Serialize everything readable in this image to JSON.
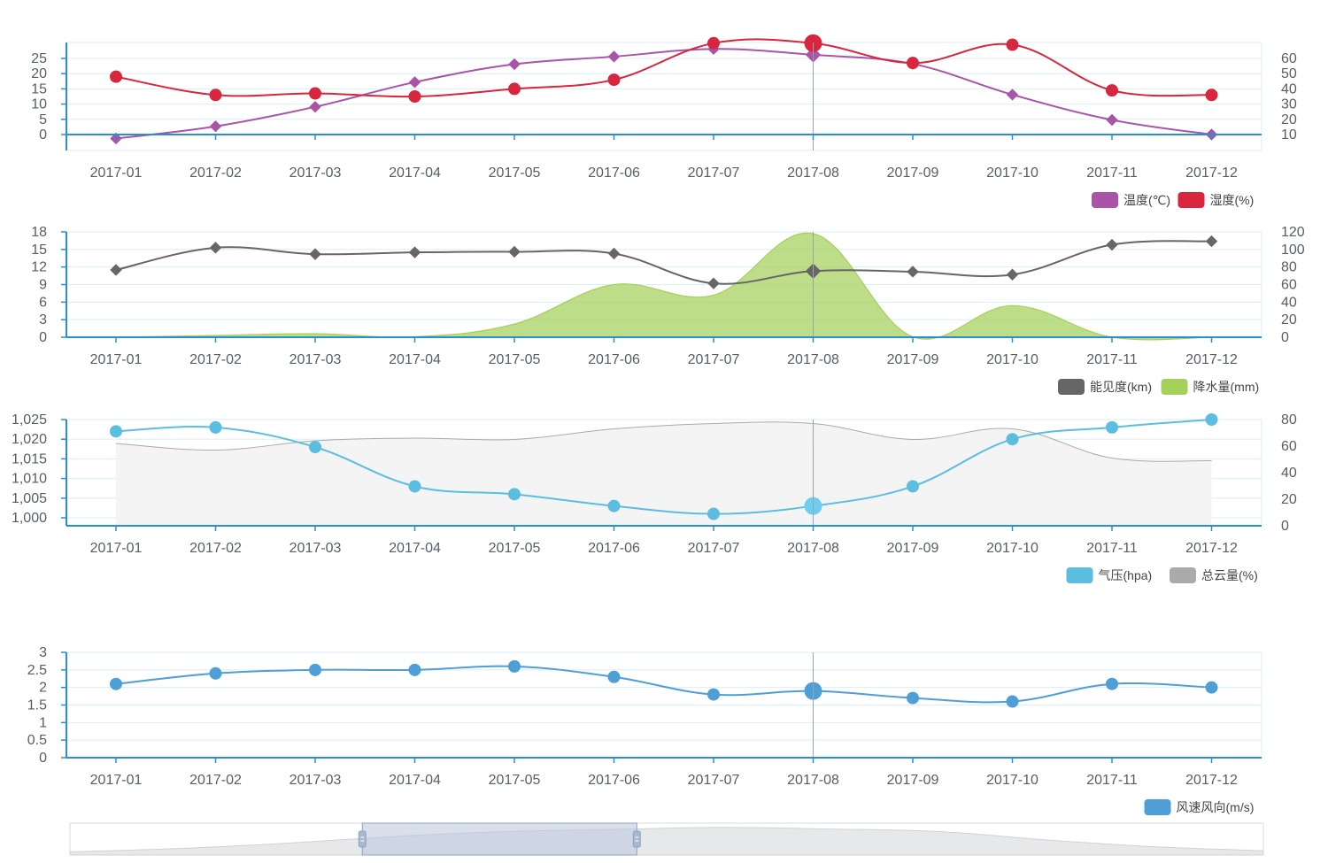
{
  "chart_data": [
    {
      "type": "line",
      "categories": [
        "2017-01",
        "2017-02",
        "2017-03",
        "2017-04",
        "2017-05",
        "2017-06",
        "2017-07",
        "2017-08",
        "2017-09",
        "2017-10",
        "2017-11",
        "2017-12"
      ],
      "left_axis": {
        "ticks": [
          "0",
          "5",
          "10",
          "15",
          "20",
          "25"
        ],
        "min": 0,
        "max": 25
      },
      "right_axis": {
        "ticks": [
          "10",
          "20",
          "30",
          "40",
          "50",
          "60"
        ],
        "min": 10,
        "max": 60
      },
      "series": [
        {
          "name": "温度(℃)",
          "axis": "left",
          "kind": "line",
          "symbol": "diamond",
          "color": "#a855a8",
          "values": [
            -1.3,
            2.7,
            9.1,
            17.2,
            23.1,
            25.6,
            28.1,
            26.2,
            23.2,
            13.1,
            4.8,
            0
          ]
        },
        {
          "name": "湿度(%)",
          "axis": "right",
          "kind": "line",
          "symbol": "circle",
          "color": "#d7263d",
          "values": [
            48,
            36,
            37,
            35,
            40,
            46,
            70,
            70,
            57,
            69,
            39,
            36
          ]
        }
      ],
      "highlight_index": 7,
      "legend_position": "bottom-right"
    },
    {
      "type": "line",
      "categories": [
        "2017-01",
        "2017-02",
        "2017-03",
        "2017-04",
        "2017-05",
        "2017-06",
        "2017-07",
        "2017-08",
        "2017-09",
        "2017-10",
        "2017-11",
        "2017-12"
      ],
      "left_axis": {
        "ticks": [
          "0",
          "3",
          "6",
          "9",
          "12",
          "15",
          "18"
        ],
        "min": 0,
        "max": 18
      },
      "right_axis": {
        "ticks": [
          "0",
          "20",
          "40",
          "60",
          "80",
          "100",
          "120"
        ],
        "min": 0,
        "max": 120
      },
      "series": [
        {
          "name": "能见度(km)",
          "axis": "left",
          "kind": "line",
          "symbol": "diamond",
          "color": "#666666",
          "values": [
            11.5,
            15.3,
            14.2,
            14.5,
            14.6,
            14.3,
            9.2,
            11.3,
            11.2,
            10.7,
            15.8,
            16.4
          ]
        },
        {
          "name": "降水量(mm)",
          "axis": "right",
          "kind": "area",
          "symbol": "none",
          "color": "#a5d05a",
          "values": [
            0,
            2,
            4,
            0.5,
            15,
            60,
            48,
            118,
            0.5,
            36,
            0,
            0
          ]
        }
      ],
      "highlight_index": 7,
      "legend_position": "bottom-right"
    },
    {
      "type": "line",
      "categories": [
        "2017-01",
        "2017-02",
        "2017-03",
        "2017-04",
        "2017-05",
        "2017-06",
        "2017-07",
        "2017-08",
        "2017-09",
        "2017-10",
        "2017-11",
        "2017-12"
      ],
      "left_axis": {
        "ticks": [
          "1,000",
          "1,005",
          "1,010",
          "1,015",
          "1,020",
          "1,025"
        ],
        "min": 998,
        "max": 1025
      },
      "right_axis": {
        "ticks": [
          "0",
          "20",
          "40",
          "60",
          "80"
        ],
        "min": 0,
        "max": 80
      },
      "series": [
        {
          "name": "气压(hpa)",
          "axis": "left",
          "kind": "line",
          "symbol": "circle",
          "color": "#5bbde0",
          "values": [
            1022,
            1023,
            1018,
            1008,
            1006,
            1003,
            1001,
            1003,
            1008,
            1020,
            1023,
            1025
          ]
        },
        {
          "name": "总云量(%)",
          "axis": "right",
          "kind": "area",
          "symbol": "none",
          "color": "#aaaaaa",
          "values": [
            62,
            57,
            64,
            66,
            65,
            73,
            77,
            77,
            65,
            73,
            51,
            49
          ]
        }
      ],
      "highlight_index": 7,
      "legend_position": "bottom-right"
    },
    {
      "type": "line",
      "categories": [
        "2017-01",
        "2017-02",
        "2017-03",
        "2017-04",
        "2017-05",
        "2017-06",
        "2017-07",
        "2017-08",
        "2017-09",
        "2017-10",
        "2017-11",
        "2017-12"
      ],
      "left_axis": {
        "ticks": [
          "0",
          "0.5",
          "1",
          "1.5",
          "2",
          "2.5",
          "3"
        ],
        "min": 0,
        "max": 3
      },
      "series": [
        {
          "name": "风速风向(m/s)",
          "axis": "left",
          "kind": "line",
          "symbol": "circle",
          "color": "#4e9fd5",
          "values": [
            2.1,
            2.4,
            2.5,
            2.5,
            2.6,
            2.3,
            1.8,
            1.9,
            1.7,
            1.6,
            2.1,
            2.0
          ]
        }
      ],
      "highlight_index": 7,
      "legend_position": "bottom-right"
    }
  ],
  "data_zoom": {
    "selected_start_fraction": 0.245,
    "selected_end_fraction": 0.475
  }
}
